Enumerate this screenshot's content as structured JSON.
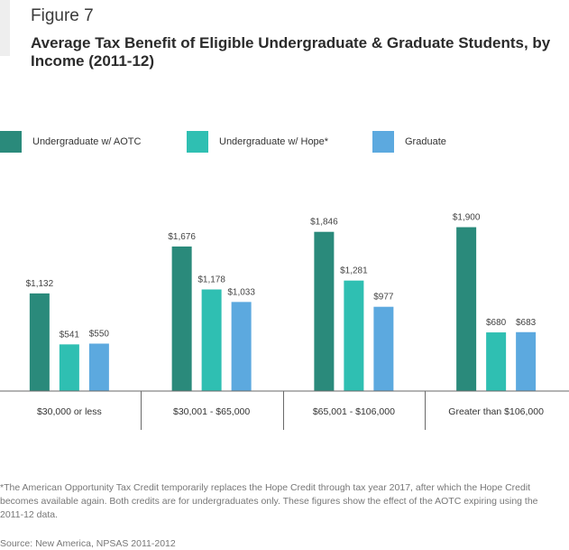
{
  "header": {
    "figure_label": "Figure 7",
    "title": "Average Tax Benefit of Eligible Undergraduate & Graduate Students, by Income (2011-12)"
  },
  "colors": {
    "undergrad_aotc": "#2a8a7b",
    "undergrad_hope": "#2fbfb2",
    "graduate": "#5ca9df",
    "axis": "#6a6a6a"
  },
  "chart_data": {
    "type": "bar",
    "categories": [
      "$30,000 or less",
      "$30,001 - $65,000",
      "$65,001 - $106,000",
      "Greater than $106,000"
    ],
    "series": [
      {
        "name": "Undergraduate w/ AOTC",
        "values": [
          1132,
          1676,
          1846,
          1900
        ],
        "labels": [
          "$1,132",
          "$1,676",
          "$1,846",
          "$1,900"
        ]
      },
      {
        "name": "Undergraduate w/ Hope*",
        "values": [
          541,
          1178,
          1281,
          680
        ],
        "labels": [
          "$541",
          "$1,178",
          "$1,281",
          "$680"
        ]
      },
      {
        "name": "Graduate",
        "values": [
          550,
          1033,
          977,
          683
        ],
        "labels": [
          "$550",
          "$1,033",
          "$977",
          "$683"
        ]
      }
    ],
    "ylim": [
      0,
      2000
    ],
    "grid": false,
    "legend_position": "top"
  },
  "footnote": "*The American Opportunity Tax Credit temporarily replaces the Hope Credit through tax year 2017, after which the Hope Credit becomes available again. Both credits are for undergraduates only. These figures show the effect of the AOTC expiring using the 2011-12 data.",
  "source": "Source: New America, NPSAS 2011-2012"
}
